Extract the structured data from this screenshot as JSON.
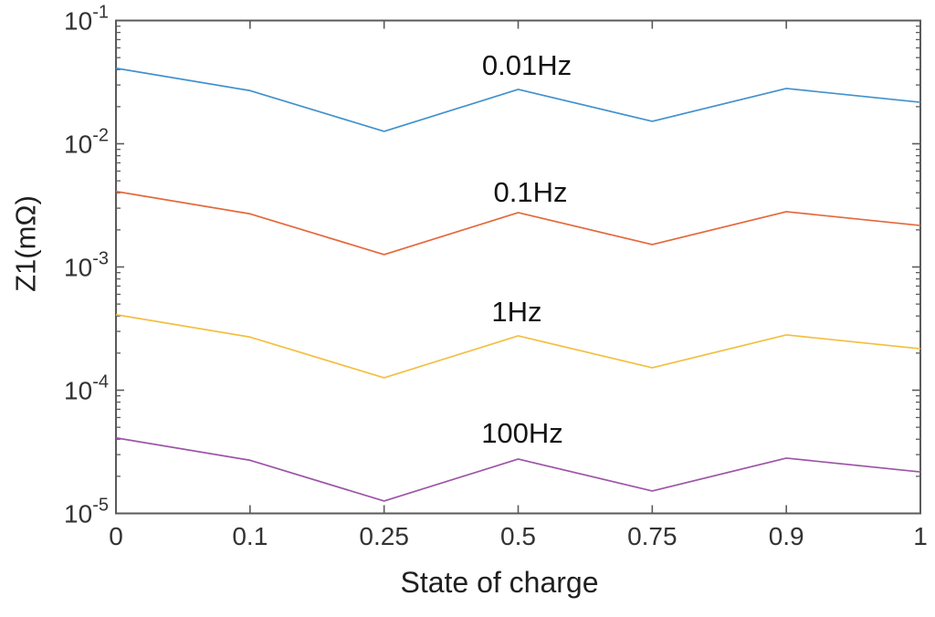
{
  "figure": {
    "background": "#ffffff",
    "axes_color": "#5a5a5a",
    "tick_label_color": "#333333",
    "label_color": "#1f1f1f"
  },
  "chart_data": {
    "type": "line",
    "title": "",
    "xlabel": "State of charge",
    "ylabel": "Z1(mΩ)",
    "yscale": "log",
    "ylim": [
      1e-05,
      0.1
    ],
    "grid": false,
    "legend": "inline-labels",
    "x_spacing": "categorical-even",
    "categories": [
      "0",
      "0.1",
      "0.25",
      "0.5",
      "0.75",
      "0.9",
      "1"
    ],
    "y_tick_exponents": [
      -1,
      -2,
      -3,
      -4,
      -5
    ],
    "series": [
      {
        "name": "0.01Hz",
        "label": "0.01Hz",
        "color": "#4191cd",
        "values": [
          0.041,
          0.027,
          0.0126,
          0.0276,
          0.0152,
          0.0281,
          0.0217
        ]
      },
      {
        "name": "0.1Hz",
        "label": "0.1Hz",
        "color": "#e4683a",
        "values": [
          0.0041,
          0.0027,
          0.00126,
          0.00276,
          0.00152,
          0.00281,
          0.00217
        ]
      },
      {
        "name": "1Hz",
        "label": "1Hz",
        "color": "#f3bf41",
        "values": [
          0.00041,
          0.00027,
          0.000126,
          0.000276,
          0.000152,
          0.000281,
          0.000217
        ]
      },
      {
        "name": "100Hz",
        "label": "100Hz",
        "color": "#9c55a6",
        "values": [
          4.1e-05,
          2.7e-05,
          1.26e-05,
          2.76e-05,
          1.52e-05,
          2.81e-05,
          2.17e-05
        ]
      }
    ]
  }
}
